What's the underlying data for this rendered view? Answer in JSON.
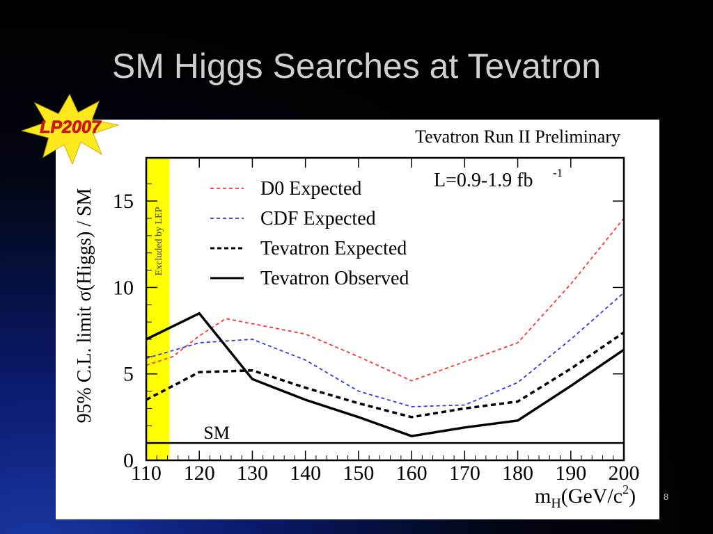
{
  "slide": {
    "title": "SM Higgs Searches at Tevatron",
    "badge_text": "LP2007",
    "page_number": "8"
  },
  "colors": {
    "background": "#000000",
    "title": "#cfcfcf",
    "badge_star": "#ffe81c",
    "badge_text": "#e8101a",
    "lep_band": "#ffff00",
    "d0": "#ff3333",
    "cdf": "#3333ee",
    "tevatron": "#000000"
  },
  "chart_data": {
    "type": "line",
    "title": "Tevatron Run II Preliminary",
    "annotation": "L=0.9-1.9 fb",
    "annotation_sup": "-1",
    "xlabel": "m",
    "xlabel_sub": "H",
    "xlabel_units": "(GeV/c",
    "xlabel_sup": "2",
    "xlabel_close": ")",
    "ylabel": "95% C.L. limit  σ(Higgs)  / SM",
    "xlim": [
      110,
      200
    ],
    "ylim": [
      0,
      17.5
    ],
    "xticks": [
      110,
      120,
      130,
      140,
      150,
      160,
      170,
      180,
      190,
      200
    ],
    "yticks": [
      0,
      5,
      10,
      15
    ],
    "excluded_band": {
      "x0": 110,
      "x1": 114.4,
      "label": "Excluded by LEP"
    },
    "sm_line": {
      "y": 1,
      "label": "SM"
    },
    "legend_position": "top-left",
    "series": [
      {
        "name": "D0 Expected",
        "style": "dashed",
        "color": "#ff3333",
        "x": [
          110,
          115,
          120,
          125,
          130,
          140,
          150,
          160,
          170,
          180,
          190,
          200
        ],
        "y": [
          5.5,
          6.0,
          7.2,
          8.2,
          7.9,
          7.3,
          6.0,
          4.6,
          5.7,
          6.8,
          10.2,
          14.0
        ]
      },
      {
        "name": "CDF Expected",
        "style": "dashed",
        "color": "#3333ee",
        "x": [
          110,
          120,
          130,
          140,
          150,
          160,
          170,
          180,
          190,
          200
        ],
        "y": [
          5.9,
          6.8,
          7.0,
          5.8,
          4.0,
          3.1,
          3.2,
          4.5,
          7.0,
          9.7
        ]
      },
      {
        "name": "Tevatron Expected",
        "style": "dashed",
        "color": "#000000",
        "x": [
          110,
          120,
          130,
          140,
          150,
          160,
          170,
          180,
          190,
          200
        ],
        "y": [
          3.5,
          5.1,
          5.2,
          4.2,
          3.3,
          2.5,
          3.0,
          3.4,
          5.3,
          7.4
        ]
      },
      {
        "name": "Tevatron Observed",
        "style": "solid",
        "color": "#000000",
        "x": [
          110,
          120,
          130,
          140,
          150,
          160,
          170,
          180,
          190,
          200
        ],
        "y": [
          7.0,
          8.5,
          4.7,
          3.5,
          2.5,
          1.4,
          1.9,
          2.3,
          4.3,
          6.4
        ]
      }
    ]
  }
}
